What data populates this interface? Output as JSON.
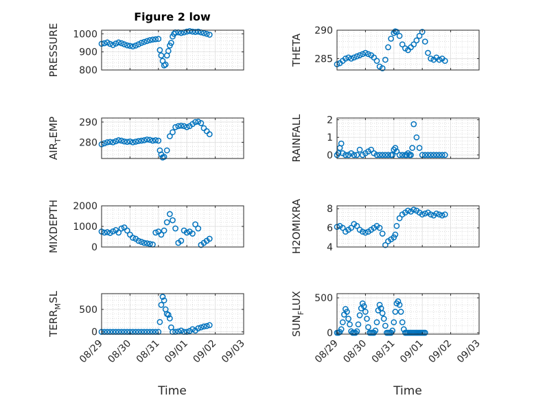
{
  "figure": {
    "title": "Figure 2 low"
  },
  "style": {
    "marker_color": "#0072BD",
    "axis_color": "#262626",
    "grid_color": "#c8c8c8"
  },
  "chart_data": [
    {
      "type": "scatter",
      "ylabel": "PRESSURE",
      "ylabel_sub": "",
      "ylabel_after": "",
      "xlim": [
        0,
        5
      ],
      "ylim": [
        800,
        1020
      ],
      "yticks": [
        800,
        900,
        1000
      ],
      "xticks": [
        "08/29",
        "08/30",
        "08/31",
        "09/01",
        "09/02",
        "09/03"
      ],
      "x": [
        0.0,
        0.1,
        0.2,
        0.3,
        0.4,
        0.5,
        0.6,
        0.7,
        0.8,
        0.9,
        1.0,
        1.1,
        1.2,
        1.3,
        1.4,
        1.5,
        1.6,
        1.7,
        1.8,
        1.9,
        2.0,
        2.05,
        2.1,
        2.15,
        2.2,
        2.25,
        2.3,
        2.35,
        2.4,
        2.45,
        2.5,
        2.55,
        2.6,
        2.7,
        2.8,
        2.9,
        3.0,
        3.1,
        3.2,
        3.3,
        3.4,
        3.5,
        3.6,
        3.7,
        3.8
      ],
      "y": [
        945,
        948,
        952,
        944,
        938,
        946,
        952,
        948,
        942,
        936,
        933,
        930,
        935,
        942,
        950,
        955,
        960,
        965,
        968,
        970,
        972,
        910,
        880,
        850,
        825,
        830,
        880,
        905,
        935,
        950,
        985,
        1000,
        1008,
        1008,
        1005,
        1008,
        1012,
        1015,
        1012,
        1010,
        1012,
        1008,
        1004,
        1000,
        995
      ]
    },
    {
      "type": "scatter",
      "ylabel": "THETA",
      "ylabel_sub": "",
      "ylabel_after": "",
      "xlim": [
        0,
        5
      ],
      "ylim": [
        283,
        290
      ],
      "yticks": [
        285,
        290
      ],
      "xticks": [
        "08/29",
        "08/30",
        "08/31",
        "09/01",
        "09/02",
        "09/03"
      ],
      "x": [
        0.0,
        0.1,
        0.2,
        0.3,
        0.4,
        0.5,
        0.6,
        0.7,
        0.8,
        0.9,
        1.0,
        1.1,
        1.2,
        1.3,
        1.4,
        1.5,
        1.6,
        1.7,
        1.8,
        1.9,
        2.0,
        2.05,
        2.1,
        2.2,
        2.3,
        2.4,
        2.5,
        2.6,
        2.7,
        2.8,
        2.9,
        3.0,
        3.1,
        3.2,
        3.3,
        3.4,
        3.5,
        3.6,
        3.7,
        3.8
      ],
      "y": [
        284.0,
        284.2,
        284.6,
        285.0,
        285.2,
        285.0,
        285.2,
        285.4,
        285.6,
        285.8,
        286.0,
        285.8,
        285.6,
        285.2,
        284.6,
        283.6,
        283.3,
        284.8,
        287.0,
        288.5,
        289.5,
        289.8,
        289.7,
        289.0,
        287.5,
        286.8,
        286.5,
        287.0,
        287.5,
        288.2,
        289.0,
        289.7,
        288.0,
        286.0,
        285.0,
        284.8,
        285.2,
        284.8,
        285.0,
        284.6
      ]
    },
    {
      "type": "scatter",
      "ylabel": "AIR",
      "ylabel_sub": "T",
      "ylabel_after": "EMP",
      "xlim": [
        0,
        5
      ],
      "ylim": [
        272,
        292
      ],
      "yticks": [
        280,
        290
      ],
      "xticks": [
        "08/29",
        "08/30",
        "08/31",
        "09/01",
        "09/02",
        "09/03"
      ],
      "x": [
        0.0,
        0.1,
        0.2,
        0.3,
        0.4,
        0.5,
        0.6,
        0.7,
        0.8,
        0.9,
        1.0,
        1.1,
        1.2,
        1.3,
        1.4,
        1.5,
        1.6,
        1.7,
        1.8,
        1.9,
        2.0,
        2.05,
        2.1,
        2.15,
        2.2,
        2.3,
        2.4,
        2.5,
        2.6,
        2.7,
        2.8,
        2.9,
        3.0,
        3.1,
        3.2,
        3.3,
        3.4,
        3.5,
        3.6,
        3.7,
        3.8
      ],
      "y": [
        279,
        279.5,
        280,
        280.2,
        280,
        280.5,
        281,
        280.8,
        280.4,
        280.2,
        280.4,
        280.0,
        280.3,
        280.6,
        280.8,
        281.0,
        281.4,
        281.2,
        280.8,
        281.0,
        280.8,
        276,
        274,
        272.5,
        272.8,
        276,
        283,
        285,
        287.5,
        288,
        288.2,
        288,
        287.5,
        288,
        289,
        290,
        290.2,
        289.5,
        287,
        285.5,
        284
      ]
    },
    {
      "type": "scatter",
      "ylabel": "RAINFALL",
      "ylabel_sub": "",
      "ylabel_after": "",
      "xlim": [
        0,
        5
      ],
      "ylim": [
        -0.2,
        2.1
      ],
      "yticks": [
        0,
        1,
        2
      ],
      "xticks": [
        "08/29",
        "08/30",
        "08/31",
        "09/01",
        "09/02",
        "09/03"
      ],
      "x": [
        0.0,
        0.05,
        0.1,
        0.15,
        0.2,
        0.3,
        0.4,
        0.5,
        0.6,
        0.7,
        0.8,
        0.9,
        1.0,
        1.1,
        1.2,
        1.3,
        1.4,
        1.5,
        1.6,
        1.7,
        1.8,
        1.9,
        1.95,
        2.0,
        2.05,
        2.1,
        2.2,
        2.3,
        2.4,
        2.45,
        2.5,
        2.55,
        2.6,
        2.65,
        2.7,
        2.8,
        2.9,
        3.0,
        3.1,
        3.2,
        3.3,
        3.4,
        3.5,
        3.6,
        3.7,
        3.8
      ],
      "y": [
        0,
        0.1,
        0.4,
        0.65,
        0.1,
        0,
        0,
        0.1,
        0,
        0,
        0.3,
        0,
        0.1,
        0.2,
        0.3,
        0.1,
        0,
        0,
        0,
        0,
        0,
        0,
        0,
        0.3,
        0.4,
        0.2,
        0,
        0,
        0,
        0,
        0.1,
        0,
        0,
        0.4,
        1.75,
        1.0,
        0.4,
        0,
        0,
        0,
        0,
        0,
        0,
        0,
        0,
        0
      ]
    },
    {
      "type": "scatter",
      "ylabel": "MIXDEPTH",
      "ylabel_sub": "",
      "ylabel_after": "",
      "xlim": [
        0,
        5
      ],
      "ylim": [
        0,
        2000
      ],
      "yticks": [
        0,
        1000,
        2000
      ],
      "xticks": [
        "08/29",
        "08/30",
        "08/31",
        "09/01",
        "09/02",
        "09/03"
      ],
      "x": [
        0.0,
        0.1,
        0.2,
        0.3,
        0.4,
        0.5,
        0.6,
        0.7,
        0.8,
        0.9,
        1.0,
        1.1,
        1.2,
        1.3,
        1.4,
        1.5,
        1.6,
        1.7,
        1.8,
        1.9,
        2.0,
        2.1,
        2.2,
        2.3,
        2.4,
        2.5,
        2.6,
        2.7,
        2.8,
        2.9,
        3.0,
        3.1,
        3.2,
        3.3,
        3.4,
        3.5,
        3.6,
        3.7,
        3.8
      ],
      "y": [
        750,
        700,
        720,
        680,
        760,
        820,
        700,
        900,
        950,
        800,
        600,
        450,
        400,
        300,
        250,
        200,
        180,
        150,
        120,
        700,
        750,
        600,
        800,
        1200,
        1600,
        1300,
        900,
        200,
        300,
        800,
        700,
        750,
        650,
        1100,
        900,
        100,
        200,
        300,
        400
      ]
    },
    {
      "type": "scatter",
      "ylabel": "H2OMIXRA",
      "ylabel_sub": "",
      "ylabel_after": "",
      "xlim": [
        0,
        5
      ],
      "ylim": [
        4,
        8.3
      ],
      "yticks": [
        4,
        6,
        8
      ],
      "xticks": [
        "08/29",
        "08/30",
        "08/31",
        "09/01",
        "09/02",
        "09/03"
      ],
      "x": [
        0.0,
        0.1,
        0.2,
        0.3,
        0.4,
        0.5,
        0.6,
        0.7,
        0.8,
        0.9,
        1.0,
        1.1,
        1.2,
        1.3,
        1.4,
        1.5,
        1.6,
        1.7,
        1.8,
        1.9,
        2.0,
        2.05,
        2.1,
        2.2,
        2.3,
        2.4,
        2.5,
        2.6,
        2.7,
        2.8,
        2.9,
        3.0,
        3.1,
        3.2,
        3.3,
        3.4,
        3.5,
        3.6,
        3.7,
        3.8
      ],
      "y": [
        6.1,
        6.2,
        6.0,
        5.6,
        5.8,
        6.0,
        6.4,
        6.2,
        5.8,
        5.6,
        5.5,
        5.6,
        5.8,
        6.0,
        6.2,
        6.0,
        5.4,
        4.2,
        4.6,
        4.8,
        5.0,
        5.3,
        6.2,
        7.0,
        7.4,
        7.6,
        7.8,
        7.7,
        7.9,
        7.8,
        7.6,
        7.4,
        7.5,
        7.6,
        7.4,
        7.3,
        7.5,
        7.4,
        7.3,
        7.4
      ]
    },
    {
      "type": "scatter",
      "ylabel": "TERR",
      "ylabel_sub": "M",
      "ylabel_after": "SL",
      "xlim": [
        0,
        5
      ],
      "ylim": [
        -50,
        850
      ],
      "yticks": [
        0,
        500
      ],
      "xticks": [
        "08/29",
        "08/30",
        "08/31",
        "09/01",
        "09/02",
        "09/03"
      ],
      "x": [
        0.0,
        0.1,
        0.2,
        0.3,
        0.4,
        0.5,
        0.6,
        0.7,
        0.8,
        0.9,
        1.0,
        1.1,
        1.2,
        1.3,
        1.4,
        1.5,
        1.6,
        1.7,
        1.8,
        1.9,
        2.0,
        2.05,
        2.1,
        2.15,
        2.2,
        2.25,
        2.3,
        2.35,
        2.4,
        2.45,
        2.5,
        2.6,
        2.7,
        2.8,
        2.9,
        3.0,
        3.1,
        3.2,
        3.3,
        3.4,
        3.5,
        3.6,
        3.7,
        3.8
      ],
      "y": [
        0,
        0,
        0,
        0,
        0,
        0,
        0,
        0,
        0,
        0,
        0,
        0,
        0,
        0,
        0,
        0,
        0,
        0,
        0,
        0,
        0,
        220,
        600,
        780,
        700,
        500,
        400,
        380,
        300,
        100,
        0,
        0,
        10,
        30,
        0,
        0,
        20,
        60,
        30,
        80,
        100,
        120,
        130,
        150
      ]
    },
    {
      "type": "scatter",
      "ylabel": "SUN",
      "ylabel_sub": "F",
      "ylabel_after": "LUX",
      "xlim": [
        0,
        5
      ],
      "ylim": [
        -20,
        560
      ],
      "yticks": [
        0,
        500
      ],
      "xticks": [
        "08/29",
        "08/30",
        "08/31",
        "09/01",
        "09/02",
        "09/03"
      ],
      "x": [
        0.0,
        0.05,
        0.1,
        0.15,
        0.2,
        0.25,
        0.3,
        0.35,
        0.4,
        0.45,
        0.5,
        0.55,
        0.6,
        0.65,
        0.7,
        0.75,
        0.8,
        0.85,
        0.9,
        0.95,
        1.0,
        1.05,
        1.1,
        1.15,
        1.2,
        1.25,
        1.3,
        1.35,
        1.4,
        1.45,
        1.5,
        1.55,
        1.6,
        1.65,
        1.7,
        1.75,
        1.8,
        1.85,
        1.9,
        1.95,
        2.0,
        2.05,
        2.1,
        2.15,
        2.2,
        2.25,
        2.3,
        2.35,
        2.4,
        2.45,
        2.5,
        2.55,
        2.6,
        2.65,
        2.7,
        2.75,
        2.8,
        2.85,
        2.9,
        2.95,
        3.0,
        3.05,
        3.1
      ],
      "y": [
        0,
        0,
        10,
        50,
        150,
        260,
        340,
        300,
        200,
        120,
        20,
        0,
        0,
        0,
        20,
        120,
        250,
        350,
        420,
        380,
        300,
        200,
        80,
        0,
        0,
        0,
        0,
        30,
        150,
        320,
        400,
        350,
        280,
        200,
        100,
        0,
        0,
        0,
        0,
        30,
        150,
        300,
        420,
        450,
        400,
        300,
        150,
        50,
        0,
        0,
        0,
        0,
        0,
        0,
        0,
        0,
        0,
        0,
        0,
        0,
        0,
        0,
        0
      ]
    }
  ],
  "xlabels": [
    "Time",
    "Time"
  ]
}
